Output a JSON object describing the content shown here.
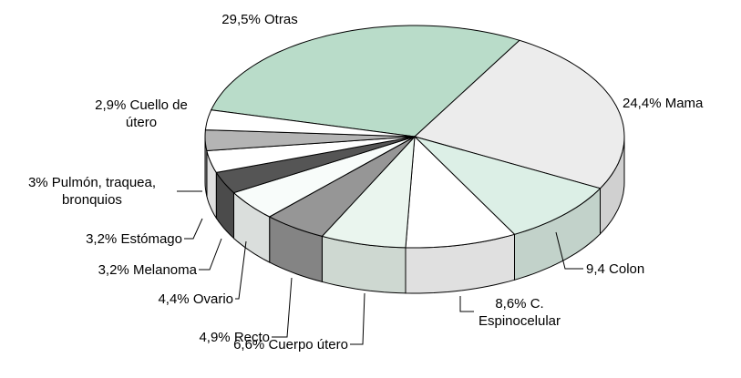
{
  "chart_data": {
    "type": "pie",
    "categories": [
      "Otras",
      "Mama",
      "Colon",
      "C. Espinocelular",
      "Cuerpo útero",
      "Recto",
      "Ovario",
      "Melanoma",
      "Estómago",
      "Pulmón, traquea, bronquios",
      "Cuello de útero"
    ],
    "values": [
      29.5,
      24.4,
      9.4,
      8.6,
      6.6,
      4.9,
      4.4,
      3.2,
      3.2,
      3,
      2.9
    ],
    "value_labels": [
      "29,5%",
      "24,4%",
      "9,4",
      "8,6%",
      "6,6%",
      "4,9%",
      "4,4%",
      "3,2%",
      "3,2%",
      "3%",
      "2,9%"
    ],
    "colors": [
      "#b9dcc9",
      "#ececec",
      "#dcefe6",
      "#ffffff",
      "#eaf5ee",
      "#969696",
      "#f8fcfa",
      "#555555",
      "#ffffff",
      "#b4b4b4",
      "#ffffff"
    ]
  }
}
